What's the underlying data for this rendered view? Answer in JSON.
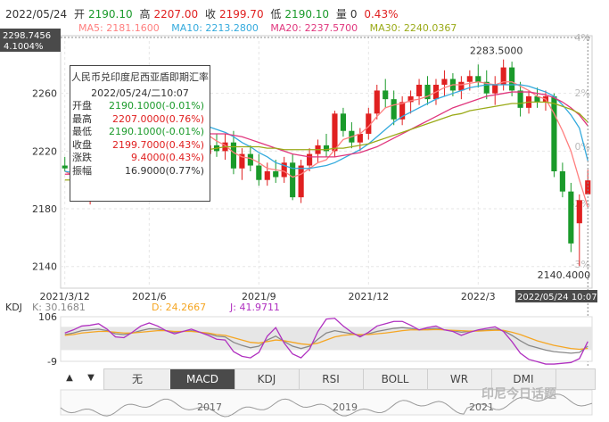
{
  "header": {
    "date": "2022/05/24",
    "open_label": "开",
    "open": "2190.10",
    "high_label": "高",
    "high": "2207.00",
    "close_label": "收",
    "close": "2199.70",
    "low_label": "低",
    "low": "2190.10",
    "volume_label": "量",
    "volume": "0",
    "change_pct": "0.43%"
  },
  "ma_legend": [
    {
      "label": "MA5: 2181.1600",
      "color": "#ff7f7f"
    },
    {
      "label": "MA10: 2213.2800",
      "color": "#33aadd"
    },
    {
      "label": "MA20: 2237.5700",
      "color": "#e0367d"
    },
    {
      "label": "MA30: 2240.0367",
      "color": "#9aaa17"
    }
  ],
  "crosshair": {
    "price": "2298.7456",
    "pct": "4.1004%",
    "time": "2022/05/24 10:07"
  },
  "tooltip": {
    "title": "人民币兑印度尼西亚盾即期汇率",
    "time": "2022/05/24/二10:07",
    "rows": [
      {
        "k": "开盘",
        "v": "2190.1000(-0.01%)",
        "c": "#1a9a2a"
      },
      {
        "k": "最高",
        "v": "2207.0000(0.76%)",
        "c": "#e02020"
      },
      {
        "k": "最低",
        "v": "2190.1000(-0.01%)",
        "c": "#1a9a2a"
      },
      {
        "k": "收盘",
        "v": "2199.7000(0.43%)",
        "c": "#e02020"
      },
      {
        "k": "涨跌",
        "v": "9.4000(0.43%)",
        "c": "#e02020"
      },
      {
        "k": "振幅",
        "v": "16.9000(0.77%)",
        "c": "#333333"
      }
    ]
  },
  "kdj": {
    "label": "KDJ",
    "k": "K: 30.1681",
    "d": "D: 24.2667",
    "j": "J: 41.9711",
    "colors": {
      "k": "#888888",
      "d": "#f5a623",
      "j": "#b030c0"
    }
  },
  "tabs": [
    "无",
    "MACD",
    "KDJ",
    "RSI",
    "BOLL",
    "WR",
    "DMI"
  ],
  "active_tab": "MACD",
  "nav": {
    "prev": "▲",
    "next": "▼"
  },
  "watermark": "印尼今日话题",
  "chart_data": {
    "type": "candlestick",
    "title": "人民币兑印度尼西亚盾即期汇率",
    "y_ticks": [
      2140,
      2180,
      2220,
      2260
    ],
    "pct_ticks": [
      "4%",
      "2%",
      "0%",
      "-2%",
      "-3%"
    ],
    "ylim": [
      2125,
      2300
    ],
    "x_ticks": [
      {
        "label": "2021/3/12",
        "i": 0
      },
      {
        "label": "2021/6",
        "i": 10
      },
      {
        "label": "2021/9",
        "i": 23
      },
      {
        "label": "2021/12",
        "i": 36
      },
      {
        "label": "2022/3",
        "i": 49
      }
    ],
    "annotations": [
      {
        "text": "2283.5000",
        "i": 52,
        "value": 2283.5
      },
      {
        "text": "2140.4000",
        "i": 60,
        "value": 2140.4
      }
    ],
    "candles": [
      {
        "o": 2210,
        "h": 2216,
        "l": 2206,
        "c": 2208
      },
      {
        "o": 2208,
        "h": 2212,
        "l": 2196,
        "c": 2198
      },
      {
        "o": 2198,
        "h": 2204,
        "l": 2185,
        "c": 2188
      },
      {
        "o": 2188,
        "h": 2198,
        "l": 2183,
        "c": 2195
      },
      {
        "o": 2195,
        "h": 2215,
        "l": 2190,
        "c": 2212
      },
      {
        "o": 2212,
        "h": 2236,
        "l": 2210,
        "c": 2232
      },
      {
        "o": 2232,
        "h": 2248,
        "l": 2226,
        "c": 2244
      },
      {
        "o": 2244,
        "h": 2250,
        "l": 2232,
        "c": 2236
      },
      {
        "o": 2236,
        "h": 2246,
        "l": 2226,
        "c": 2230
      },
      {
        "o": 2230,
        "h": 2244,
        "l": 2226,
        "c": 2242
      },
      {
        "o": 2242,
        "h": 2252,
        "l": 2234,
        "c": 2238
      },
      {
        "o": 2238,
        "h": 2248,
        "l": 2232,
        "c": 2246
      },
      {
        "o": 2246,
        "h": 2252,
        "l": 2236,
        "c": 2240
      },
      {
        "o": 2240,
        "h": 2248,
        "l": 2232,
        "c": 2244
      },
      {
        "o": 2244,
        "h": 2250,
        "l": 2236,
        "c": 2240
      },
      {
        "o": 2240,
        "h": 2246,
        "l": 2226,
        "c": 2230
      },
      {
        "o": 2230,
        "h": 2238,
        "l": 2214,
        "c": 2218
      },
      {
        "o": 2218,
        "h": 2228,
        "l": 2212,
        "c": 2224
      },
      {
        "o": 2224,
        "h": 2232,
        "l": 2216,
        "c": 2220
      },
      {
        "o": 2220,
        "h": 2232,
        "l": 2214,
        "c": 2226
      },
      {
        "o": 2226,
        "h": 2234,
        "l": 2204,
        "c": 2208
      },
      {
        "o": 2208,
        "h": 2222,
        "l": 2200,
        "c": 2218
      },
      {
        "o": 2218,
        "h": 2224,
        "l": 2206,
        "c": 2210
      },
      {
        "o": 2210,
        "h": 2218,
        "l": 2196,
        "c": 2200
      },
      {
        "o": 2200,
        "h": 2212,
        "l": 2196,
        "c": 2206
      },
      {
        "o": 2206,
        "h": 2214,
        "l": 2198,
        "c": 2202
      },
      {
        "o": 2202,
        "h": 2216,
        "l": 2198,
        "c": 2212
      },
      {
        "o": 2212,
        "h": 2218,
        "l": 2186,
        "c": 2188
      },
      {
        "o": 2188,
        "h": 2214,
        "l": 2184,
        "c": 2210
      },
      {
        "o": 2210,
        "h": 2222,
        "l": 2206,
        "c": 2218
      },
      {
        "o": 2218,
        "h": 2228,
        "l": 2212,
        "c": 2224
      },
      {
        "o": 2224,
        "h": 2232,
        "l": 2216,
        "c": 2220
      },
      {
        "o": 2220,
        "h": 2248,
        "l": 2216,
        "c": 2246
      },
      {
        "o": 2246,
        "h": 2250,
        "l": 2230,
        "c": 2234
      },
      {
        "o": 2234,
        "h": 2240,
        "l": 2222,
        "c": 2226
      },
      {
        "o": 2226,
        "h": 2236,
        "l": 2220,
        "c": 2232
      },
      {
        "o": 2232,
        "h": 2250,
        "l": 2228,
        "c": 2246
      },
      {
        "o": 2246,
        "h": 2266,
        "l": 2242,
        "c": 2262
      },
      {
        "o": 2262,
        "h": 2270,
        "l": 2250,
        "c": 2256
      },
      {
        "o": 2256,
        "h": 2262,
        "l": 2238,
        "c": 2242
      },
      {
        "o": 2242,
        "h": 2258,
        "l": 2238,
        "c": 2254
      },
      {
        "o": 2254,
        "h": 2262,
        "l": 2246,
        "c": 2258
      },
      {
        "o": 2258,
        "h": 2270,
        "l": 2252,
        "c": 2266
      },
      {
        "o": 2266,
        "h": 2272,
        "l": 2252,
        "c": 2256
      },
      {
        "o": 2256,
        "h": 2270,
        "l": 2252,
        "c": 2266
      },
      {
        "o": 2266,
        "h": 2276,
        "l": 2258,
        "c": 2270
      },
      {
        "o": 2270,
        "h": 2274,
        "l": 2258,
        "c": 2262
      },
      {
        "o": 2262,
        "h": 2272,
        "l": 2256,
        "c": 2268
      },
      {
        "o": 2268,
        "h": 2276,
        "l": 2262,
        "c": 2272
      },
      {
        "o": 2272,
        "h": 2280,
        "l": 2264,
        "c": 2268
      },
      {
        "o": 2268,
        "h": 2276,
        "l": 2256,
        "c": 2260
      },
      {
        "o": 2260,
        "h": 2272,
        "l": 2252,
        "c": 2266
      },
      {
        "o": 2266,
        "h": 2283.5,
        "l": 2262,
        "c": 2278
      },
      {
        "o": 2278,
        "h": 2282,
        "l": 2258,
        "c": 2262
      },
      {
        "o": 2262,
        "h": 2268,
        "l": 2244,
        "c": 2250
      },
      {
        "o": 2250,
        "h": 2262,
        "l": 2246,
        "c": 2258
      },
      {
        "o": 2258,
        "h": 2264,
        "l": 2250,
        "c": 2254
      },
      {
        "o": 2254,
        "h": 2262,
        "l": 2248,
        "c": 2258
      },
      {
        "o": 2258,
        "h": 2260,
        "l": 2202,
        "c": 2206
      },
      {
        "o": 2206,
        "h": 2212,
        "l": 2188,
        "c": 2192
      },
      {
        "o": 2192,
        "h": 2198,
        "l": 2150,
        "c": 2156
      },
      {
        "o": 2170,
        "h": 2190,
        "l": 2140.4,
        "c": 2186
      },
      {
        "o": 2190.1,
        "h": 2207,
        "l": 2190.1,
        "c": 2199.7
      }
    ],
    "series": [
      {
        "name": "MA5",
        "color": "#ff7f7f",
        "values": [
          2206,
          2203,
          2198,
          2196,
          2200,
          2207,
          2217,
          2226,
          2234,
          2237,
          2238,
          2238,
          2240,
          2242,
          2242,
          2240,
          2236,
          2231,
          2227,
          2224,
          2219,
          2216,
          2215,
          2212,
          2208,
          2207,
          2206,
          2202,
          2204,
          2208,
          2212,
          2214,
          2221,
          2228,
          2230,
          2232,
          2237,
          2244,
          2250,
          2252,
          2253,
          2255,
          2256,
          2258,
          2261,
          2264,
          2266,
          2266,
          2267,
          2268,
          2267,
          2266,
          2268,
          2268,
          2265,
          2262,
          2258,
          2256,
          2246,
          2234,
          2220,
          2200,
          2181.16
        ]
      },
      {
        "name": "MA10",
        "color": "#33aadd",
        "values": [
          2206,
          2205,
          2203,
          2201,
          2201,
          2202,
          2205,
          2210,
          2215,
          2220,
          2226,
          2232,
          2236,
          2239,
          2240,
          2240,
          2239,
          2237,
          2235,
          2233,
          2230,
          2226,
          2223,
          2219,
          2216,
          2212,
          2210,
          2208,
          2208,
          2208,
          2209,
          2210,
          2212,
          2215,
          2218,
          2221,
          2225,
          2230,
          2235,
          2240,
          2244,
          2247,
          2250,
          2253,
          2256,
          2258,
          2260,
          2262,
          2264,
          2265,
          2266,
          2266,
          2266,
          2266,
          2266,
          2265,
          2263,
          2261,
          2258,
          2252,
          2245,
          2236,
          2213.28
        ]
      },
      {
        "name": "MA20",
        "color": "#e0367d",
        "values": [
          2204,
          2204,
          2203,
          2203,
          2203,
          2204,
          2206,
          2208,
          2211,
          2214,
          2217,
          2220,
          2223,
          2226,
          2228,
          2230,
          2231,
          2232,
          2232,
          2232,
          2231,
          2230,
          2228,
          2226,
          2224,
          2222,
          2220,
          2218,
          2217,
          2216,
          2216,
          2216,
          2216,
          2217,
          2218,
          2219,
          2221,
          2223,
          2226,
          2229,
          2232,
          2235,
          2238,
          2241,
          2244,
          2247,
          2250,
          2252,
          2254,
          2256,
          2258,
          2259,
          2260,
          2261,
          2261,
          2261,
          2260,
          2259,
          2257,
          2254,
          2250,
          2245,
          2237.57
        ]
      },
      {
        "name": "MA30",
        "color": "#9aaa17",
        "values": [
          2200,
          2200,
          2200,
          2200,
          2201,
          2202,
          2203,
          2204,
          2206,
          2208,
          2210,
          2212,
          2214,
          2216,
          2218,
          2219,
          2220,
          2221,
          2222,
          2223,
          2223,
          2223,
          2223,
          2223,
          2222,
          2222,
          2221,
          2221,
          2221,
          2221,
          2221,
          2221,
          2222,
          2222,
          2223,
          2224,
          2225,
          2227,
          2229,
          2231,
          2233,
          2235,
          2237,
          2239,
          2241,
          2243,
          2245,
          2246,
          2248,
          2249,
          2250,
          2251,
          2252,
          2253,
          2253,
          2254,
          2254,
          2254,
          2253,
          2251,
          2249,
          2246,
          2240.04
        ]
      }
    ],
    "kdj_ylim": [
      -9,
      106
    ],
    "kdj_ticks": [
      106,
      -9
    ],
    "kdj_series": {
      "K": [
        60,
        64,
        70,
        72,
        74,
        70,
        62,
        60,
        64,
        70,
        75,
        74,
        70,
        66,
        68,
        70,
        66,
        62,
        56,
        54,
        40,
        32,
        26,
        30,
        46,
        56,
        42,
        30,
        24,
        30,
        48,
        64,
        70,
        66,
        62,
        58,
        62,
        68,
        72,
        76,
        78,
        76,
        72,
        74,
        76,
        72,
        70,
        66,
        68,
        70,
        72,
        74,
        70,
        58,
        44,
        32,
        26,
        20,
        16,
        14,
        12,
        14,
        30.17
      ],
      "D": [
        58,
        60,
        64,
        66,
        68,
        68,
        66,
        64,
        64,
        66,
        68,
        70,
        70,
        68,
        68,
        68,
        66,
        64,
        60,
        58,
        52,
        46,
        40,
        38,
        42,
        46,
        44,
        40,
        36,
        34,
        38,
        46,
        54,
        58,
        60,
        60,
        60,
        62,
        64,
        67,
        70,
        72,
        72,
        72,
        73,
        72,
        71,
        70,
        69,
        69,
        70,
        71,
        71,
        66,
        60,
        52,
        44,
        38,
        32,
        28,
        24,
        22,
        24.27
      ],
      "J": [
        64,
        72,
        82,
        84,
        88,
        74,
        54,
        52,
        66,
        82,
        90,
        82,
        70,
        62,
        68,
        74,
        66,
        58,
        48,
        46,
        16,
        4,
        0,
        14,
        56,
        78,
        38,
        10,
        0,
        22,
        68,
        100,
        102,
        82,
        66,
        54,
        66,
        82,
        88,
        94,
        94,
        84,
        72,
        78,
        82,
        72,
        68,
        58,
        66,
        72,
        76,
        80,
        68,
        42,
        12,
        -4,
        -10,
        -16,
        -16,
        -14,
        -12,
        -2,
        41.97
      ]
    },
    "navigator_labels": [
      "2017",
      "2019",
      "2021"
    ]
  }
}
